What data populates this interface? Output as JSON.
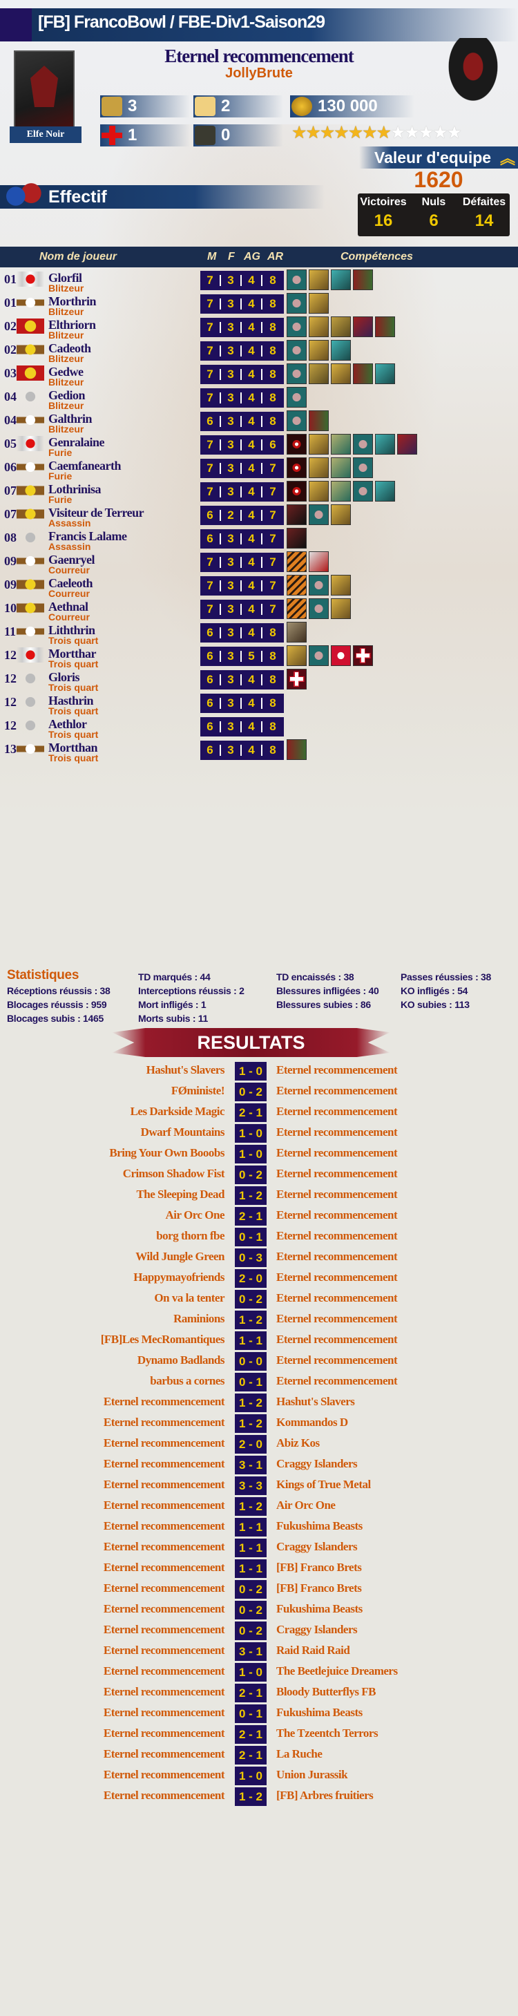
{
  "header": {
    "title": "[FB] FrancoBowl / FBE-Div1-Saison29"
  },
  "team": {
    "name": "Eternel recommencement",
    "coach": "JollyBrute",
    "race": "Elfe Noir"
  },
  "counters": {
    "rerolls": "3",
    "cheerleaders": "2",
    "apothecary": "1",
    "assistant_coaches": "0",
    "treasury": "130 000"
  },
  "popularity": {
    "filled": 7,
    "total": 12
  },
  "team_value": {
    "label": "Valeur d'equipe",
    "value": "1620"
  },
  "roster_label": "Effectif",
  "record": {
    "wins_label": "Victoires",
    "wins": "16",
    "draws_label": "Nuls",
    "draws": "6",
    "losses_label": "Défaites",
    "losses": "14"
  },
  "table_headers": {
    "name": "Nom de joueur",
    "m": "M",
    "f": "F",
    "ag": "AG",
    "ar": "AR",
    "skills": "Compétences"
  },
  "colors": {
    "navy": "#1e0f5c",
    "orange": "#d05a0a",
    "yellow": "#f0c800",
    "banner": "#1d4275",
    "results_banner": "#961a2a"
  },
  "players": [
    {
      "num": "01",
      "badge": "winged-red",
      "name": "Glorfil",
      "pos": "Blitzeur",
      "stats": [
        "7",
        "3",
        "4",
        "8"
      ],
      "skills": [
        "hand",
        "runner",
        "boot",
        "brawler"
      ]
    },
    {
      "num": "01",
      "badge": "silver-bar",
      "name": "Morthrin",
      "pos": "Blitzeur",
      "stats": [
        "7",
        "3",
        "4",
        "8"
      ],
      "skills": [
        "hand",
        "runner"
      ]
    },
    {
      "num": "02",
      "badge": "red-gold",
      "name": "Elthriorn",
      "pos": "Blitzeur",
      "stats": [
        "7",
        "3",
        "4",
        "8"
      ],
      "skills": [
        "hand",
        "runner",
        "golden",
        "fist",
        "brawler"
      ]
    },
    {
      "num": "02",
      "badge": "gold-bar",
      "name": "Cadeoth",
      "pos": "Blitzeur",
      "stats": [
        "7",
        "3",
        "4",
        "8"
      ],
      "skills": [
        "hand",
        "runner",
        "boot"
      ]
    },
    {
      "num": "03",
      "badge": "red-gold",
      "name": "Gedwe",
      "pos": "Blitzeur",
      "stats": [
        "7",
        "3",
        "4",
        "8"
      ],
      "skills": [
        "hand",
        "golden",
        "runner",
        "brawler",
        "boot"
      ]
    },
    {
      "num": "04",
      "badge": "silver-star",
      "name": "Gedion",
      "pos": "Blitzeur",
      "stats": [
        "7",
        "3",
        "4",
        "8"
      ],
      "skills": [
        "hand"
      ]
    },
    {
      "num": "04",
      "badge": "silver-bar",
      "name": "Galthrin",
      "pos": "Blitzeur",
      "stats": [
        "6",
        "3",
        "4",
        "8"
      ],
      "skills": [
        "hand",
        "brawler"
      ]
    },
    {
      "num": "05",
      "badge": "winged-red",
      "name": "Genralaine",
      "pos": "Furie",
      "stats": [
        "7",
        "3",
        "4",
        "6"
      ],
      "skills": [
        "eye",
        "runner",
        "mask",
        "hand",
        "boot",
        "fist"
      ]
    },
    {
      "num": "06",
      "badge": "silver-bar",
      "name": "Caemfanearth",
      "pos": "Furie",
      "stats": [
        "7",
        "3",
        "4",
        "7"
      ],
      "skills": [
        "eye",
        "runner",
        "mask",
        "hand"
      ]
    },
    {
      "num": "07",
      "badge": "gold-bar",
      "name": "Lothrinisa",
      "pos": "Furie",
      "stats": [
        "7",
        "3",
        "4",
        "7"
      ],
      "skills": [
        "eye",
        "runner",
        "mask",
        "hand",
        "boot"
      ]
    },
    {
      "num": "07",
      "badge": "gold-bar",
      "name": "Visiteur de Terreur",
      "pos": "Assassin",
      "stats": [
        "6",
        "2",
        "4",
        "7"
      ],
      "skills": [
        "shadow",
        "hand",
        "runner"
      ]
    },
    {
      "num": "08",
      "badge": "silver-star",
      "name": "Francis Lalame",
      "pos": "Assassin",
      "stats": [
        "6",
        "3",
        "4",
        "7"
      ],
      "skills": [
        "shadow"
      ]
    },
    {
      "num": "09",
      "badge": "silver-bar",
      "name": "Gaenryel",
      "pos": "Courreur",
      "stats": [
        "7",
        "3",
        "4",
        "7"
      ],
      "skills": [
        "claw",
        "axe"
      ]
    },
    {
      "num": "09",
      "badge": "gold-bar",
      "name": "Caeleoth",
      "pos": "Courreur",
      "stats": [
        "7",
        "3",
        "4",
        "7"
      ],
      "skills": [
        "claw",
        "hand",
        "runner"
      ]
    },
    {
      "num": "10",
      "badge": "gold-bar",
      "name": "Aethnal",
      "pos": "Courreur",
      "stats": [
        "7",
        "3",
        "4",
        "7"
      ],
      "skills": [
        "claw",
        "hand",
        "runner"
      ]
    },
    {
      "num": "11",
      "badge": "silver-bar",
      "name": "Liththrin",
      "pos": "Trois quart",
      "stats": [
        "6",
        "3",
        "4",
        "8"
      ],
      "skills": [
        "helm"
      ]
    },
    {
      "num": "12",
      "badge": "winged-red",
      "name": "Mortthar",
      "pos": "Trois quart",
      "stats": [
        "6",
        "3",
        "5",
        "8"
      ],
      "skills": [
        "runner",
        "hand",
        "ball",
        "cross"
      ]
    },
    {
      "num": "12",
      "badge": "silver-star",
      "name": "Gloris",
      "pos": "Trois quart",
      "stats": [
        "6",
        "3",
        "4",
        "8"
      ],
      "skills": [
        "cross"
      ]
    },
    {
      "num": "12",
      "badge": "silver-star",
      "name": "Hasthrin",
      "pos": "Trois quart",
      "stats": [
        "6",
        "3",
        "4",
        "8"
      ],
      "skills": []
    },
    {
      "num": "12",
      "badge": "silver-star",
      "name": "Aethlor",
      "pos": "Trois quart",
      "stats": [
        "6",
        "3",
        "4",
        "8"
      ],
      "skills": []
    },
    {
      "num": "13",
      "badge": "silver-bar",
      "name": "Mortthan",
      "pos": "Trois quart",
      "stats": [
        "6",
        "3",
        "4",
        "8"
      ],
      "skills": [
        "brawler"
      ]
    }
  ],
  "statistics": {
    "title": "Statistiques",
    "items": [
      "TD marqués : 44",
      "TD encaissés : 38",
      "Passes réussies : 38",
      "Réceptions réussis : 38",
      "Interceptions réussis : 2",
      "Blessures infligées : 40",
      "KO infligés : 54",
      "Blocages réussis : 959",
      "Mort infligés : 1",
      "Blessures subies : 86",
      "KO subies : 113",
      "Blocages subis : 1465",
      "Morts subis : 11"
    ]
  },
  "results_title": "RESULTATS",
  "results": [
    {
      "home": "Hashut's Slavers",
      "score": "1 - 0",
      "away": "Eternel recommencement"
    },
    {
      "home": "FØministe!",
      "score": "0 - 2",
      "away": "Eternel recommencement"
    },
    {
      "home": "Les Darkside Magic",
      "score": "2 - 1",
      "away": "Eternel recommencement"
    },
    {
      "home": "Dwarf Mountains",
      "score": "1 - 0",
      "away": "Eternel recommencement"
    },
    {
      "home": "Bring Your Own Booobs",
      "score": "1 - 0",
      "away": "Eternel recommencement"
    },
    {
      "home": "Crimson Shadow Fist",
      "score": "0 - 2",
      "away": "Eternel recommencement"
    },
    {
      "home": "The Sleeping Dead",
      "score": "1 - 2",
      "away": "Eternel recommencement"
    },
    {
      "home": "Air Orc One",
      "score": "2 - 1",
      "away": "Eternel recommencement"
    },
    {
      "home": "borg thorn fbe",
      "score": "0 - 1",
      "away": "Eternel recommencement"
    },
    {
      "home": "Wild Jungle Green",
      "score": "0 - 3",
      "away": "Eternel recommencement"
    },
    {
      "home": "Happymayofriends",
      "score": "2 - 0",
      "away": "Eternel recommencement"
    },
    {
      "home": "On va la tenter",
      "score": "0 - 2",
      "away": "Eternel recommencement"
    },
    {
      "home": "Raminions",
      "score": "1 - 2",
      "away": "Eternel recommencement"
    },
    {
      "home": "[FB]Les MecRomantiques",
      "score": "1 - 1",
      "away": "Eternel recommencement"
    },
    {
      "home": "Dynamo Badlands",
      "score": "0 - 0",
      "away": "Eternel recommencement"
    },
    {
      "home": "barbus a cornes",
      "score": "0 - 1",
      "away": "Eternel recommencement"
    },
    {
      "home": "Eternel recommencement",
      "score": "1 - 2",
      "away": "Hashut's Slavers"
    },
    {
      "home": "Eternel recommencement",
      "score": "1 - 2",
      "away": "Kommandos D"
    },
    {
      "home": "Eternel recommencement",
      "score": "2 - 0",
      "away": "Abiz Kos"
    },
    {
      "home": "Eternel recommencement",
      "score": "3 - 1",
      "away": "Craggy Islanders"
    },
    {
      "home": "Eternel recommencement",
      "score": "3 - 3",
      "away": "Kings of True Metal"
    },
    {
      "home": "Eternel recommencement",
      "score": "1 - 2",
      "away": "Air Orc One"
    },
    {
      "home": "Eternel recommencement",
      "score": "1 - 1",
      "away": "Fukushima Beasts"
    },
    {
      "home": "Eternel recommencement",
      "score": "1 - 1",
      "away": "Craggy Islanders"
    },
    {
      "home": "Eternel recommencement",
      "score": "1 - 1",
      "away": "[FB] Franco Brets"
    },
    {
      "home": "Eternel recommencement",
      "score": "0 - 2",
      "away": "[FB] Franco Brets"
    },
    {
      "home": "Eternel recommencement",
      "score": "0 - 2",
      "away": "Fukushima Beasts"
    },
    {
      "home": "Eternel recommencement",
      "score": "0 - 2",
      "away": "Craggy Islanders"
    },
    {
      "home": "Eternel recommencement",
      "score": "3 - 1",
      "away": "Raid Raid Raid"
    },
    {
      "home": "Eternel recommencement",
      "score": "1 - 0",
      "away": "The Beetlejuice Dreamers"
    },
    {
      "home": "Eternel recommencement",
      "score": "2 - 1",
      "away": "Bloody Butterflys FB"
    },
    {
      "home": "Eternel recommencement",
      "score": "0 - 1",
      "away": "Fukushima Beasts"
    },
    {
      "home": "Eternel recommencement",
      "score": "2 - 1",
      "away": "The Tzeentch Terrors"
    },
    {
      "home": "Eternel recommencement",
      "score": "2 - 1",
      "away": "La Ruche"
    },
    {
      "home": "Eternel recommencement",
      "score": "1 - 0",
      "away": "Union Jurassik"
    },
    {
      "home": "Eternel recommencement",
      "score": "1 - 2",
      "away": "[FB] Arbres fruitiers"
    }
  ]
}
